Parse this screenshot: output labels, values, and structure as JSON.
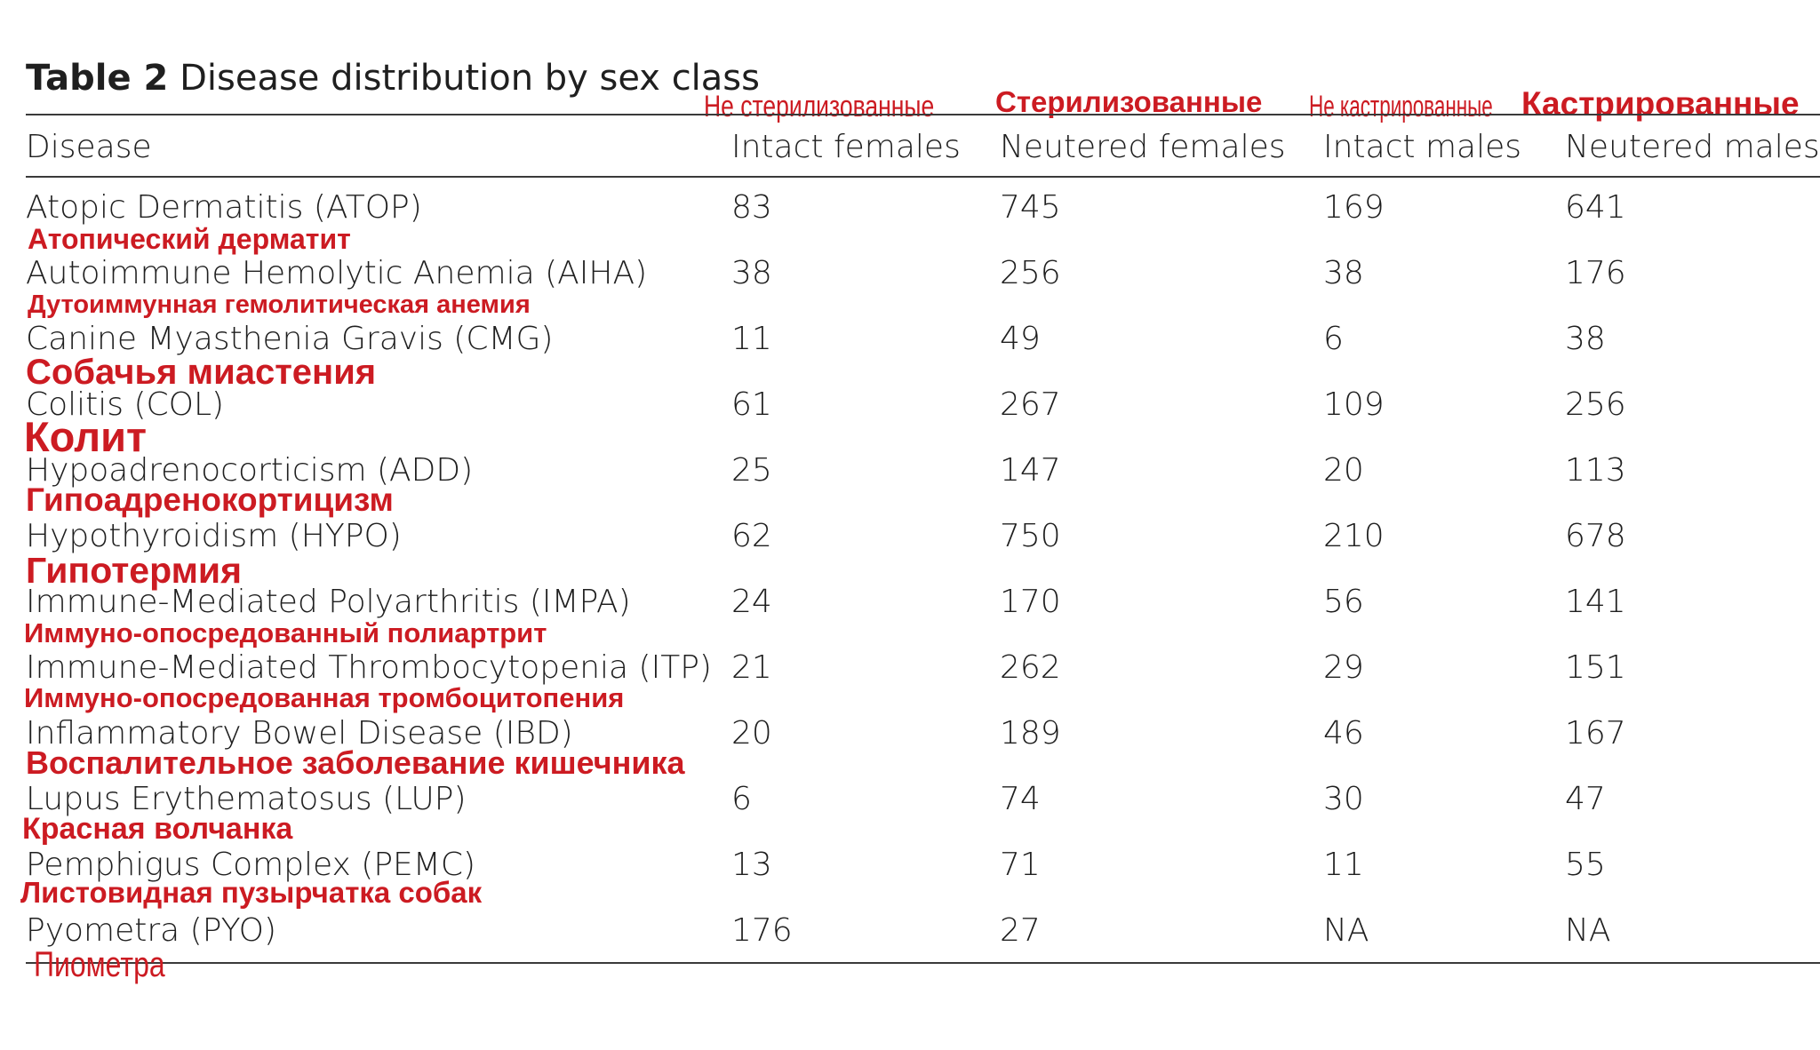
{
  "title": {
    "label": "Table 2",
    "text": "Disease distribution by sex class"
  },
  "columns": [
    "Disease",
    "Intact females",
    "Neutered females",
    "Intact males",
    "Neutered males"
  ],
  "column_annotations": [
    "Не стерилизованные",
    "Стерилизованные",
    "Не кастрированные",
    "Кастрированные"
  ],
  "rows": [
    {
      "disease": "Atopic Dermatitis (ATOP)",
      "values": [
        "83",
        "745",
        "169",
        "641"
      ],
      "annotation": "Атопический дерматит"
    },
    {
      "disease": "Autoimmune Hemolytic Anemia (AIHA)",
      "values": [
        "38",
        "256",
        "38",
        "176"
      ],
      "annotation": "Дутоиммунная гемолитическая анемия"
    },
    {
      "disease": "Canine Myasthenia Gravis (CMG)",
      "values": [
        "11",
        "49",
        "6",
        "38"
      ],
      "annotation": "Собачья миастения"
    },
    {
      "disease": "Colitis (COL)",
      "values": [
        "61",
        "267",
        "109",
        "256"
      ],
      "annotation": "Колит"
    },
    {
      "disease": "Hypoadrenocorticism (ADD)",
      "values": [
        "25",
        "147",
        "20",
        "113"
      ],
      "annotation": "Гипоадренокортицизм"
    },
    {
      "disease": "Hypothyroidism (HYPO)",
      "values": [
        "62",
        "750",
        "210",
        "678"
      ],
      "annotation": "Гипотермия"
    },
    {
      "disease": "Immune-Mediated Polyarthritis (IMPA)",
      "values": [
        "24",
        "170",
        "56",
        "141"
      ],
      "annotation": "Иммуно-опосредованный полиартрит"
    },
    {
      "disease": "Immune-Mediated Thrombocytopenia (ITP)",
      "values": [
        "21",
        "262",
        "29",
        "151"
      ],
      "annotation": "Иммуно-опосредованная тромбоцитопения"
    },
    {
      "disease": "Inflammatory Bowel Disease (IBD)",
      "values": [
        "20",
        "189",
        "46",
        "167"
      ],
      "annotation": "Воспалительное заболевание кишечника"
    },
    {
      "disease": "Lupus Erythematosus (LUP)",
      "values": [
        "6",
        "74",
        "30",
        "47"
      ],
      "annotation": "Красная волчанка"
    },
    {
      "disease": "Pemphigus Complex (PEMC)",
      "values": [
        "13",
        "71",
        "11",
        "55"
      ],
      "annotation": "Листовидная пузырчатка собак"
    },
    {
      "disease": "Pyometra (PYO)",
      "values": [
        "176",
        "27",
        "NA",
        "NA"
      ],
      "annotation": "Пиометра"
    }
  ],
  "colors": {
    "annotation": "#cc1b22",
    "text": "#1f1f1f",
    "rule": "#3a3a3a"
  }
}
